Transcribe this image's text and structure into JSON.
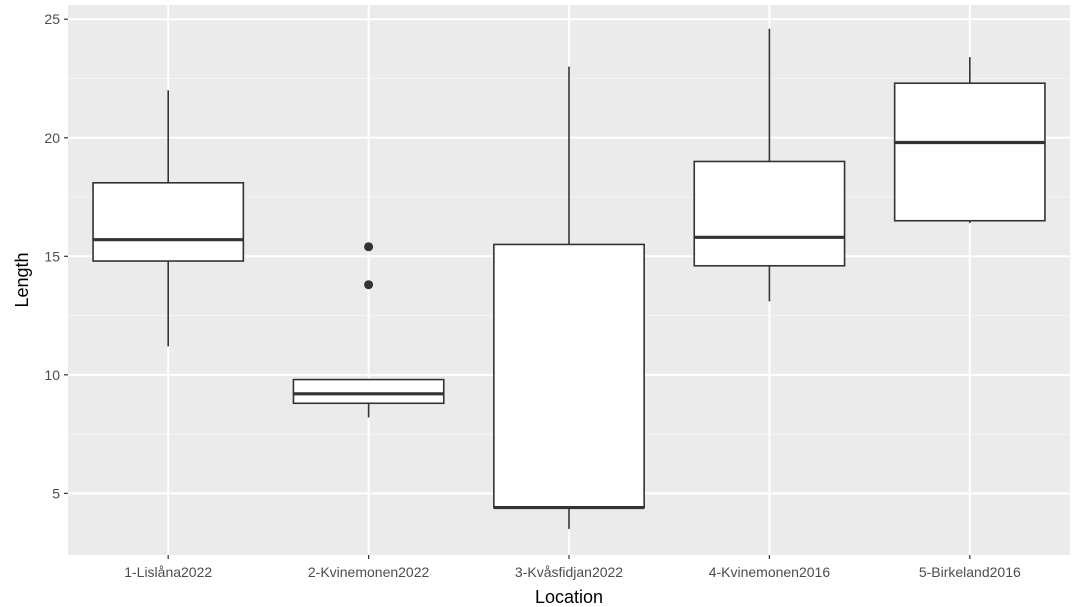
{
  "chart_data": {
    "type": "boxplot",
    "title": "",
    "xlabel": "Location",
    "ylabel": "Length",
    "ylim": [
      2.4,
      25.6
    ],
    "yticks": [
      5,
      10,
      15,
      20,
      25
    ],
    "categories": [
      "1-Lislåna2022",
      "2-Kvinemonen2022",
      "3-Kvåsfidjan2022",
      "4-Kvinemonen2016",
      "5-Birkeland2016"
    ],
    "boxes": [
      {
        "category": "1-Lislåna2022",
        "whisker_low": 11.2,
        "q1": 14.8,
        "median": 15.7,
        "q3": 18.1,
        "whisker_high": 22.0,
        "outliers": []
      },
      {
        "category": "2-Kvinemonen2022",
        "whisker_low": 8.2,
        "q1": 8.8,
        "median": 9.2,
        "q3": 9.8,
        "whisker_high": 9.8,
        "outliers": [
          13.8,
          15.4
        ]
      },
      {
        "category": "3-Kvåsfidjan2022",
        "whisker_low": 3.5,
        "q1": 4.4,
        "median": 4.4,
        "q3": 15.5,
        "whisker_high": 23.0,
        "outliers": []
      },
      {
        "category": "4-Kvinemonen2016",
        "whisker_low": 13.1,
        "q1": 14.6,
        "median": 15.8,
        "q3": 19.0,
        "whisker_high": 24.6,
        "outliers": []
      },
      {
        "category": "5-Birkeland2016",
        "whisker_low": 16.4,
        "q1": 16.5,
        "median": 19.8,
        "q3": 22.3,
        "whisker_high": 23.4,
        "outliers": []
      }
    ],
    "grid": true,
    "legend": "none",
    "colors": {
      "panel_background": "#ebebeb",
      "grid_major": "#ffffff",
      "grid_minor": "#f5f5f5",
      "box_fill": "#ffffff",
      "box_stroke": "#333333",
      "outlier": "#333333",
      "tick_label": "#4d4d4d",
      "axis_title": "#000000"
    }
  }
}
